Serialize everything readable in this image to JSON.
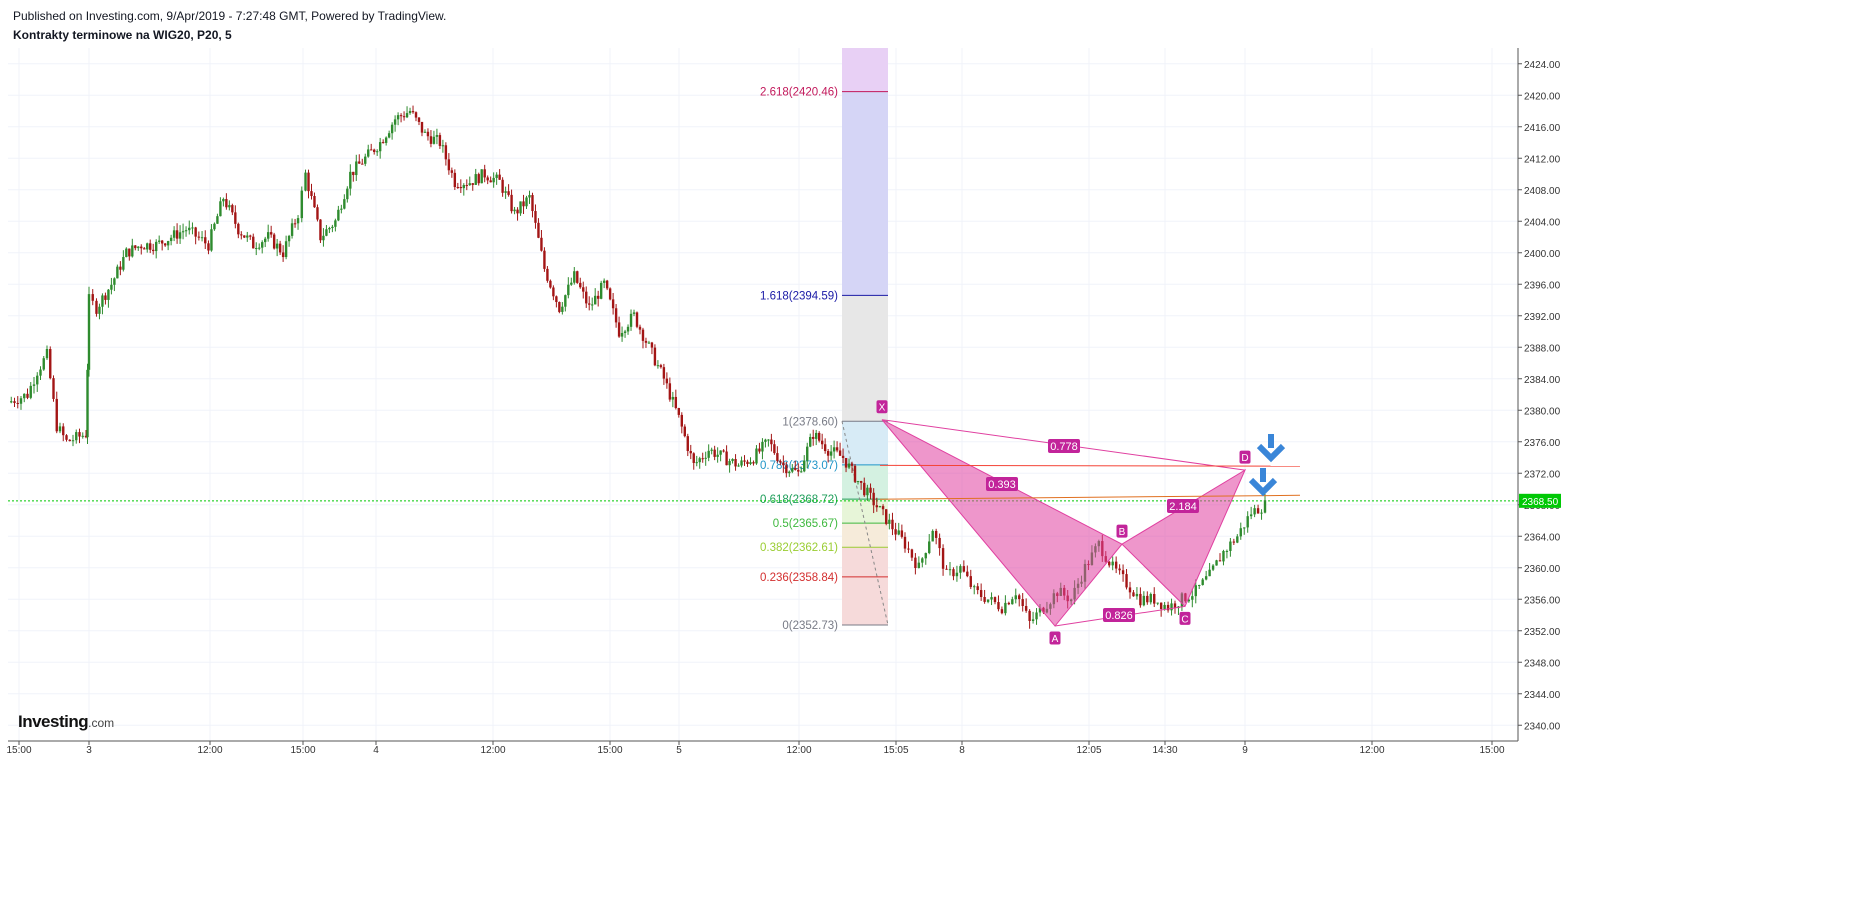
{
  "header": {
    "published": "Published on Investing.com, 9/Apr/2019 - 7:27:48 GMT, Powered by TradingView.",
    "instrument": "Kontrakty terminowe na WIG20, P20, 5"
  },
  "logo": {
    "brand": "Investing",
    "suffix": ".com"
  },
  "chart_data": {
    "type": "candlestick",
    "y_axis": {
      "min": 2338,
      "max": 2426,
      "ticks": [
        "2424.00",
        "2420.00",
        "2416.00",
        "2412.00",
        "2408.00",
        "2404.00",
        "2400.00",
        "2396.00",
        "2392.00",
        "2388.00",
        "2384.00",
        "2380.00",
        "2376.00",
        "2372.00",
        "2368.00",
        "2364.00",
        "2360.00",
        "2356.00",
        "2352.00",
        "2348.00",
        "2344.00",
        "2340.00"
      ]
    },
    "x_axis": {
      "ticks": [
        "15:00",
        "3",
        "12:00",
        "15:00",
        "4",
        "12:00",
        "15:00",
        "5",
        "12:00",
        "15:05",
        "8",
        "12:05",
        "14:30",
        "9",
        "12:00",
        "15:00"
      ]
    },
    "last_price": {
      "value": 2368.5,
      "label": "2368.50",
      "color": "#00c805"
    },
    "price_path": [
      [
        0,
        2381
      ],
      [
        0.02,
        2382
      ],
      [
        0.03,
        2385
      ],
      [
        0.04,
        2387
      ],
      [
        0.05,
        2378
      ],
      [
        0.06,
        2376
      ],
      [
        0.08,
        2377
      ],
      [
        0.09,
        2394
      ],
      [
        0.1,
        2393
      ],
      [
        0.12,
        2396
      ],
      [
        0.14,
        2400
      ],
      [
        0.16,
        2401
      ],
      [
        0.18,
        2401
      ],
      [
        0.2,
        2402
      ],
      [
        0.22,
        2403
      ],
      [
        0.25,
        2401
      ],
      [
        0.27,
        2407
      ],
      [
        0.29,
        2403
      ],
      [
        0.31,
        2401
      ],
      [
        0.33,
        2402
      ],
      [
        0.35,
        2400
      ],
      [
        0.37,
        2405
      ],
      [
        0.38,
        2410
      ],
      [
        0.4,
        2402
      ],
      [
        0.42,
        2404
      ],
      [
        0.44,
        2410
      ],
      [
        0.46,
        2412
      ],
      [
        0.48,
        2414
      ],
      [
        0.5,
        2417
      ],
      [
        0.52,
        2418
      ],
      [
        0.54,
        2415
      ],
      [
        0.56,
        2414
      ],
      [
        0.58,
        2409
      ],
      [
        0.6,
        2409
      ],
      [
        0.62,
        2410
      ],
      [
        0.64,
        2409
      ],
      [
        0.66,
        2405
      ],
      [
        0.68,
        2407
      ],
      [
        0.7,
        2398
      ],
      [
        0.72,
        2393
      ],
      [
        0.74,
        2397
      ],
      [
        0.76,
        2393
      ],
      [
        0.78,
        2396
      ],
      [
        0.8,
        2390
      ],
      [
        0.82,
        2392
      ],
      [
        0.84,
        2388
      ],
      [
        0.86,
        2384
      ],
      [
        0.88,
        2379
      ],
      [
        0.9,
        2373
      ],
      [
        0.92,
        2375
      ],
      [
        0.94,
        2374
      ],
      [
        0.96,
        2373
      ],
      [
        0.98,
        2374
      ],
      [
        1.0,
        2376
      ],
      [
        1.02,
        2373
      ],
      [
        1.04,
        2372
      ],
      [
        1.06,
        2377
      ],
      [
        1.08,
        2375
      ],
      [
        1.1,
        2374
      ],
      [
        1.12,
        2371
      ],
      [
        1.14,
        2363
      ],
      [
        1.16,
        2360
      ],
      [
        1.18,
        2365
      ],
      [
        1.2,
        2359
      ],
      [
        1.22,
        2360
      ],
      [
        1.24,
        2357
      ],
      [
        1.26,
        2356
      ],
      [
        1.28,
        2355
      ],
      [
        1.3,
        2357
      ],
      [
        1.32,
        2353
      ],
      [
        1.34,
        2355
      ],
      [
        1.36,
        2357
      ],
      [
        1.38,
        2356
      ],
      [
        1.4,
        2360
      ],
      [
        1.42,
        2363
      ],
      [
        1.44,
        2360
      ],
      [
        1.46,
        2358
      ],
      [
        1.48,
        2356
      ],
      [
        1.5,
        2356
      ],
      [
        1.52,
        2355
      ],
      [
        1.54,
        2356
      ],
      [
        1.56,
        2357
      ],
      [
        1.58,
        2359
      ],
      [
        1.6,
        2362
      ],
      [
        1.62,
        2364
      ],
      [
        1.64,
        2367
      ],
      [
        1.66,
        2368
      ]
    ],
    "fib_retracement": {
      "levels": [
        {
          "ratio": "2.618",
          "price": 2420.46,
          "label": "2.618(2420.46)",
          "line": "#c2185b",
          "fill": "#f2cfcf"
        },
        {
          "ratio": "1.618",
          "price": 2394.59,
          "label": "1.618(2394.59)",
          "line": "#1a1aa6",
          "fill": "#d3d3f5"
        },
        {
          "ratio": "1",
          "price": 2378.6,
          "label": "1(2378.60)",
          "line": "#787b86",
          "fill": "#e6e6e6"
        },
        {
          "ratio": "0.786",
          "price": 2373.07,
          "label": "0.786(2373.07)",
          "line": "#2196c8",
          "fill": "#d5eaf5"
        },
        {
          "ratio": "0.618",
          "price": 2368.72,
          "label": "0.618(2368.72)",
          "line": "#1e9e5a",
          "fill": "#d2f0df"
        },
        {
          "ratio": "0.5",
          "price": 2365.67,
          "label": "0.5(2365.67)",
          "line": "#3eb83e",
          "fill": "#e6f4d6"
        },
        {
          "ratio": "0.382",
          "price": 2362.61,
          "label": "0.382(2362.61)",
          "line": "#9acd32",
          "fill": "#f5ead8"
        },
        {
          "ratio": "0.236",
          "price": 2358.84,
          "label": "0.236(2358.84)",
          "line": "#d32f2f",
          "fill": "#f5d8d8"
        },
        {
          "ratio": "0",
          "price": 2352.73,
          "label": "0(2352.73)",
          "line": "#787b86",
          "fill": "#f5d8d8"
        }
      ],
      "top_band_color": "#e8d0f5"
    },
    "harmonic_pattern": {
      "points": [
        {
          "name": "X",
          "price": 2378.8
        },
        {
          "name": "A",
          "price": 2352.6
        },
        {
          "name": "B",
          "price": 2363.0
        },
        {
          "name": "C",
          "price": 2355.1
        },
        {
          "name": "D",
          "price": 2372.4
        }
      ],
      "ratios": [
        {
          "label": "0.778",
          "between": "XA-D"
        },
        {
          "label": "0.393",
          "between": "XA-B"
        },
        {
          "label": "0.826",
          "between": "AB-C"
        },
        {
          "label": "2.184",
          "between": "BC-D"
        }
      ],
      "color": "#e040a0"
    },
    "trend_lines": [
      {
        "price_start": 2373.0,
        "price_end": 2372.9,
        "color": "#f44336"
      },
      {
        "price_start": 2368.7,
        "price_end": 2369.2,
        "color": "#e07020"
      }
    ],
    "annotations": [
      {
        "type": "arrow-down",
        "color": "#3a86d8"
      },
      {
        "type": "arrow-down",
        "color": "#3a86d8"
      }
    ]
  }
}
